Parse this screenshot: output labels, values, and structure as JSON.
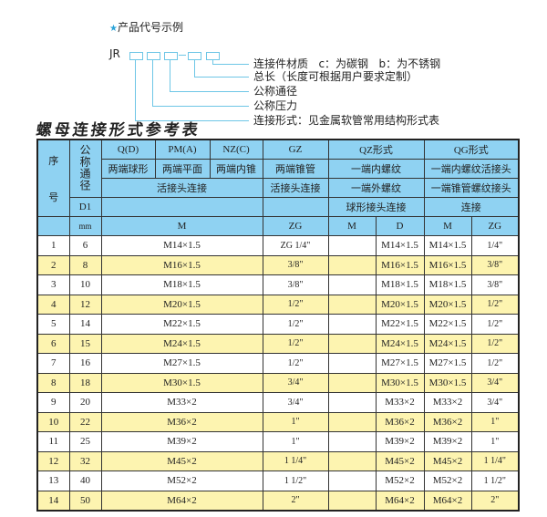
{
  "code_example": {
    "title": "产品代号示例",
    "prefix": "JR",
    "legend": [
      "连接件材质   c：为碳钢   b：为不锈钢",
      "总长（长度可根据用户要求定制）",
      "公称通径",
      "公称压力",
      "连接形式：见金属软管常用结构形式表"
    ]
  },
  "ref_title": "螺母连接形式参考表",
  "table": {
    "h_seq": "序",
    "h_seq2": "号",
    "h_dn": "公称通径",
    "h_d1": "D1",
    "h_mm": "mm",
    "q": "Q(D)",
    "pm": "PM(A)",
    "nz": "NZ(C)",
    "gz": "GZ",
    "qz": "QZ形式",
    "qg": "QG形式",
    "q_desc": "两端球形",
    "pm_desc": "两端平面",
    "nz_desc": "两端内锥",
    "gz_desc": "两端锥管",
    "qz_desc": "一端内螺纹",
    "qg_desc": "一端内螺纹活接头",
    "union": "活接头连接",
    "gz_union": "活接头连接",
    "qz_desc2": "一端外螺纹",
    "qg_desc2": "一端锥管螺纹接头",
    "qz_desc3": "球形接头连接",
    "qg_desc3": "连接",
    "u_m": "M",
    "u_zg": "ZG",
    "u_qz_m": "M",
    "u_qz_d": "D",
    "u_qg_m": "M",
    "u_qg_zg": "ZG",
    "rows": [
      {
        "no": "1",
        "dn": "6",
        "m": "M14×1.5",
        "zg": "ZG 1/4\"",
        "qz_m": "",
        "qz_d": "M14×1.5",
        "qg_m": "M14×1.5",
        "qg_zg": "1/4\""
      },
      {
        "no": "2",
        "dn": "8",
        "m": "M16×1.5",
        "zg": "3/8\"",
        "qz_m": "",
        "qz_d": "M16×1.5",
        "qg_m": "M16×1.5",
        "qg_zg": "3/8\""
      },
      {
        "no": "3",
        "dn": "10",
        "m": "M18×1.5",
        "zg": "3/8\"",
        "qz_m": "",
        "qz_d": "M18×1.5",
        "qg_m": "M18×1.5",
        "qg_zg": "3/8\""
      },
      {
        "no": "4",
        "dn": "12",
        "m": "M20×1.5",
        "zg": "1/2\"",
        "qz_m": "",
        "qz_d": "M20×1.5",
        "qg_m": "M20×1.5",
        "qg_zg": "1/2\""
      },
      {
        "no": "5",
        "dn": "14",
        "m": "M22×1.5",
        "zg": "1/2\"",
        "qz_m": "",
        "qz_d": "M22×1.5",
        "qg_m": "M22×1.5",
        "qg_zg": "1/2\""
      },
      {
        "no": "6",
        "dn": "15",
        "m": "M24×1.5",
        "zg": "1/2\"",
        "qz_m": "",
        "qz_d": "M24×1.5",
        "qg_m": "M24×1.5",
        "qg_zg": "1/2\""
      },
      {
        "no": "7",
        "dn": "16",
        "m": "M27×1.5",
        "zg": "1/2\"",
        "qz_m": "",
        "qz_d": "M27×1.5",
        "qg_m": "M27×1.5",
        "qg_zg": "1/2\""
      },
      {
        "no": "8",
        "dn": "18",
        "m": "M30×1.5",
        "zg": "3/4\"",
        "qz_m": "",
        "qz_d": "M30×1.5",
        "qg_m": "M30×1.5",
        "qg_zg": "3/4\""
      },
      {
        "no": "9",
        "dn": "20",
        "m": "M33×2",
        "zg": "3/4\"",
        "qz_m": "",
        "qz_d": "M33×2",
        "qg_m": "M33×2",
        "qg_zg": "3/4\""
      },
      {
        "no": "10",
        "dn": "22",
        "m": "M36×2",
        "zg": "1\"",
        "qz_m": "",
        "qz_d": "M36×2",
        "qg_m": "M36×2",
        "qg_zg": "1\""
      },
      {
        "no": "11",
        "dn": "25",
        "m": "M39×2",
        "zg": "1\"",
        "qz_m": "",
        "qz_d": "M39×2",
        "qg_m": "M39×2",
        "qg_zg": "1\""
      },
      {
        "no": "12",
        "dn": "32",
        "m": "M45×2",
        "zg": "1 1/4\"",
        "qz_m": "",
        "qz_d": "M45×2",
        "qg_m": "M45×2",
        "qg_zg": "1 1/4\""
      },
      {
        "no": "13",
        "dn": "40",
        "m": "M52×2",
        "zg": "1 1/2\"",
        "qz_m": "",
        "qz_d": "M52×2",
        "qg_m": "M52×2",
        "qg_zg": "1 1/2\""
      },
      {
        "no": "14",
        "dn": "50",
        "m": "M64×2",
        "zg": "2\"",
        "qz_m": "",
        "qz_d": "M64×2",
        "qg_m": "M64×2",
        "qg_zg": "2\""
      }
    ]
  }
}
